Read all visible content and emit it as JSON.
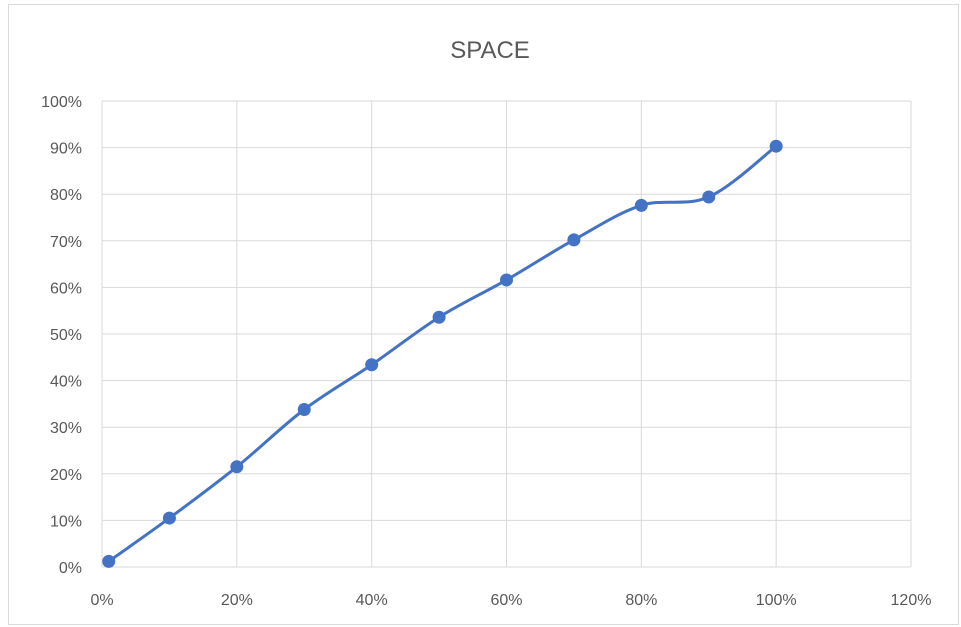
{
  "chart_data": {
    "type": "scatter",
    "title": "SPACE",
    "xlabel": "",
    "ylabel": "",
    "xlim": [
      0,
      1.2
    ],
    "ylim": [
      0,
      1.0
    ],
    "x_ticks": [
      0,
      0.2,
      0.4,
      0.6,
      0.8,
      1.0,
      1.2
    ],
    "x_tick_labels": [
      "0%",
      "20%",
      "40%",
      "60%",
      "80%",
      "100%",
      "120%"
    ],
    "y_ticks": [
      0,
      0.1,
      0.2,
      0.3,
      0.4,
      0.5,
      0.6,
      0.7,
      0.8,
      0.9,
      1.0
    ],
    "y_tick_labels": [
      "0%",
      "10%",
      "20%",
      "30%",
      "40%",
      "50%",
      "60%",
      "70%",
      "80%",
      "90%",
      "100%"
    ],
    "grid": true,
    "series": [
      {
        "x": [
          0.01,
          0.1,
          0.2,
          0.3,
          0.4,
          0.5,
          0.6,
          0.7,
          0.8,
          0.9,
          1.0
        ],
        "y": [
          0.012,
          0.105,
          0.215,
          0.338,
          0.434,
          0.536,
          0.616,
          0.702,
          0.776,
          0.794,
          0.903
        ],
        "color": "#4472c4",
        "line": "smooth",
        "markers": true
      }
    ]
  }
}
